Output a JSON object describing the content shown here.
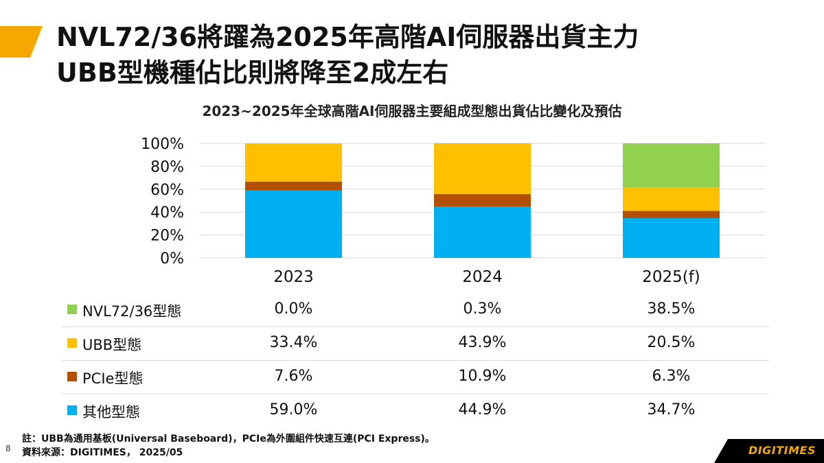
{
  "slide": {
    "title_line1": "NVL72/36將躍為2025年高階AI伺服器出貨主力",
    "title_line2": "UBB型機種佔比則將降至2成左右",
    "page_number": "8",
    "note": "註：UBB為通用基板(Universal Baseboard)，PCIe為外圍組件快速互連(PCI Express)。",
    "source": "資料來源：DIGITIMES， 2025/05",
    "logo_text": "DIGITIMES",
    "accent_color": "#F5A800"
  },
  "chart_data": {
    "type": "bar",
    "stacked": true,
    "title": "2023~2025年全球高階AI伺服器主要組成型態出貨佔比變化及預估",
    "categories": [
      "2023",
      "2024",
      "2025(f)"
    ],
    "y_ticks": [
      "0%",
      "20%",
      "40%",
      "60%",
      "80%",
      "100%"
    ],
    "ylim": [
      0,
      100
    ],
    "grid": true,
    "series": [
      {
        "name": "其他型態",
        "color": "#00B0F0",
        "values": [
          59.0,
          44.9,
          34.7
        ],
        "labels": [
          "59.0%",
          "44.9%",
          "34.7%"
        ]
      },
      {
        "name": "PCIe型態",
        "color": "#B35000",
        "values": [
          7.6,
          10.9,
          6.3
        ],
        "labels": [
          "7.6%",
          "10.9%",
          "6.3%"
        ]
      },
      {
        "name": "UBB型態",
        "color": "#FFC000",
        "values": [
          33.4,
          43.9,
          20.5
        ],
        "labels": [
          "33.4%",
          "43.9%",
          "20.5%"
        ]
      },
      {
        "name": "NVL72/36型態",
        "color": "#92D050",
        "values": [
          0.0,
          0.3,
          38.5
        ],
        "labels": [
          "0.0%",
          "0.3%",
          "38.5%"
        ]
      }
    ]
  }
}
